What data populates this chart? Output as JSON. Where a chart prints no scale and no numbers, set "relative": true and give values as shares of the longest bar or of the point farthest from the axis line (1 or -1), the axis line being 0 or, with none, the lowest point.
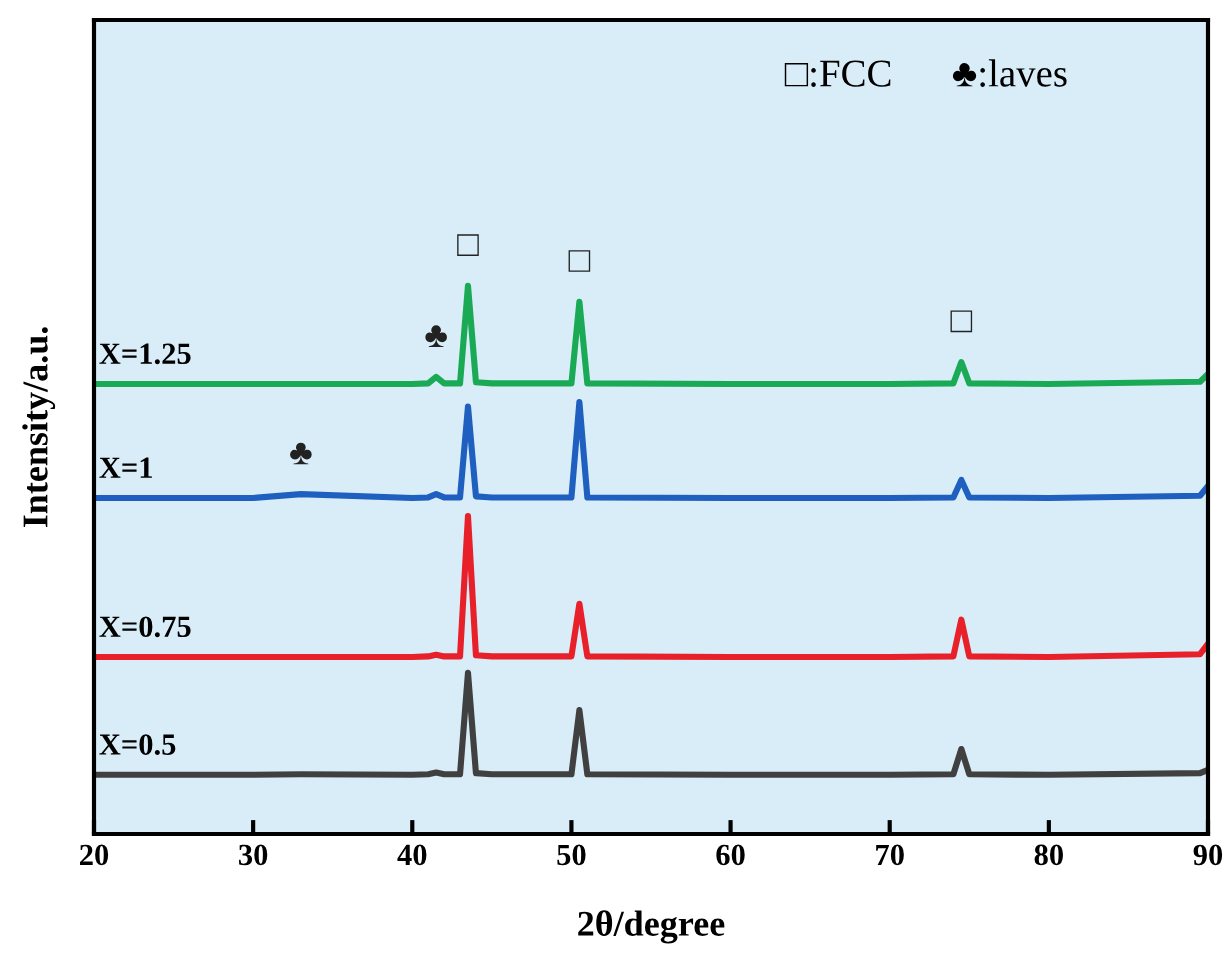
{
  "chart_data": {
    "type": "line",
    "relative": true,
    "xlabel": "2θ/degree",
    "ylabel": "Intensity/a.u.",
    "xlim": [
      20,
      90
    ],
    "xticks": [
      20,
      30,
      40,
      50,
      60,
      70,
      80,
      90
    ],
    "legend": false,
    "grid": false,
    "tick_labels": "x",
    "x": [
      20,
      30,
      33,
      40,
      41,
      41.5,
      42,
      43,
      43.5,
      44,
      45,
      50,
      50.5,
      51,
      60,
      70,
      74,
      74.5,
      75,
      80,
      89.5,
      90
    ],
    "series": [
      {
        "name": "X=1.25",
        "color": "#1aaa55",
        "values": [
          0.821,
          0.821,
          0.821,
          0.821,
          0.822,
          0.834,
          0.822,
          0.822,
          1.0,
          0.824,
          0.822,
          0.822,
          0.971,
          0.822,
          0.821,
          0.821,
          0.822,
          0.861,
          0.822,
          0.821,
          0.825,
          0.839
        ]
      },
      {
        "name": "X=1",
        "color": "#1f5fbf",
        "values": [
          0.613,
          0.613,
          0.62,
          0.613,
          0.614,
          0.62,
          0.614,
          0.614,
          0.78,
          0.616,
          0.614,
          0.614,
          0.788,
          0.614,
          0.613,
          0.613,
          0.614,
          0.646,
          0.614,
          0.613,
          0.617,
          0.635
        ]
      },
      {
        "name": "X=0.75",
        "color": "#e8202a",
        "values": [
          0.323,
          0.323,
          0.323,
          0.323,
          0.324,
          0.327,
          0.324,
          0.324,
          0.58,
          0.326,
          0.324,
          0.324,
          0.42,
          0.324,
          0.323,
          0.323,
          0.324,
          0.391,
          0.324,
          0.323,
          0.328,
          0.347
        ]
      },
      {
        "name": "X=0.5",
        "color": "#404040",
        "values": [
          0.108,
          0.108,
          0.109,
          0.108,
          0.109,
          0.112,
          0.109,
          0.109,
          0.294,
          0.111,
          0.109,
          0.109,
          0.226,
          0.109,
          0.108,
          0.108,
          0.109,
          0.155,
          0.109,
          0.108,
          0.111,
          0.117
        ]
      }
    ],
    "annotations": [
      "□:FCC",
      "♣:laves",
      {
        "text": "□",
        "x": 43.5,
        "y": 1.0
      },
      {
        "text": "□",
        "x": 50.5,
        "y": 0.971
      },
      {
        "text": "□",
        "x": 74.5,
        "y": 0.861
      },
      {
        "text": "♣",
        "x": 41.5,
        "y": 0.834
      },
      {
        "text": "♣",
        "x": 33,
        "y": 0.62
      }
    ]
  }
}
